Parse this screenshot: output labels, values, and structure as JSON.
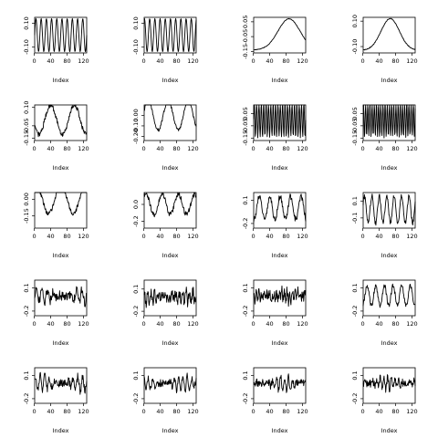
{
  "chart_data": [
    {
      "type": "line",
      "xlabel": "Index",
      "x_ticks": [
        0,
        40,
        80,
        120
      ],
      "xlim": [
        1,
        128
      ],
      "ylim": [
        -0.15,
        0.15
      ],
      "y_ticks": [
        -0.1,
        0.1
      ],
      "y_tick_labels": [
        "-0.10",
        "0.10"
      ],
      "shape": {
        "kind": "sine",
        "cycles": 10,
        "amp": 0.14,
        "noise": 0,
        "phase": 0
      }
    },
    {
      "type": "line",
      "xlabel": "Index",
      "x_ticks": [
        0,
        40,
        80,
        120
      ],
      "xlim": [
        1,
        128
      ],
      "ylim": [
        -0.15,
        0.15
      ],
      "y_ticks": [
        -0.1,
        0.1
      ],
      "y_tick_labels": [
        "-0.10",
        "0.10"
      ],
      "shape": {
        "kind": "sine",
        "cycles": 10,
        "amp": 0.14,
        "noise": 0,
        "phase": 1.2
      }
    },
    {
      "type": "line",
      "xlabel": "Index",
      "x_ticks": [
        0,
        40,
        80,
        120
      ],
      "xlim": [
        1,
        128
      ],
      "ylim": [
        -0.16,
        0.08
      ],
      "y_ticks": [
        -0.15,
        -0.05,
        0.05
      ],
      "y_tick_labels": [
        "-0.15",
        "-0.05",
        "0.05"
      ],
      "shape": {
        "kind": "hump",
        "center": 0.68,
        "width": 0.3,
        "low": -0.14,
        "high": 0.07,
        "noise": 0.002
      }
    },
    {
      "type": "line",
      "xlabel": "Index",
      "x_ticks": [
        0,
        40,
        80,
        120
      ],
      "xlim": [
        1,
        128
      ],
      "ylim": [
        -0.15,
        0.13
      ],
      "y_ticks": [
        -0.1,
        0.1
      ],
      "y_tick_labels": [
        "-0.10",
        "0.10"
      ],
      "shape": {
        "kind": "hump",
        "center": 0.52,
        "width": 0.25,
        "low": -0.13,
        "high": 0.12,
        "noise": 0.003
      }
    },
    {
      "type": "line",
      "xlabel": "Index",
      "x_ticks": [
        0,
        40,
        80,
        120
      ],
      "xlim": [
        1,
        128
      ],
      "ylim": [
        -0.17,
        0.12
      ],
      "y_ticks": [
        -0.15,
        -0.05,
        0.1
      ],
      "y_tick_labels": [
        "-0.15",
        "-0.05",
        "0.10"
      ],
      "shape": {
        "kind": "sine",
        "cycles": 2.2,
        "amp": 0.12,
        "noise": 0.02,
        "phase": 3.6
      }
    },
    {
      "type": "line",
      "xlabel": "Index",
      "x_ticks": [
        0,
        40,
        80,
        120
      ],
      "xlim": [
        1,
        128
      ],
      "ylim": [
        -0.24,
        0.1
      ],
      "y_ticks": [
        -0.2,
        -0.1,
        0.0
      ],
      "y_tick_labels": [
        "-0.20",
        "-0.10",
        "0.00"
      ],
      "shape": {
        "kind": "sine",
        "cycles": 2.6,
        "amp": 0.14,
        "noise": 0.015,
        "phase": 0.3
      }
    },
    {
      "type": "line",
      "xlabel": "Index",
      "x_ticks": [
        0,
        40,
        80,
        120
      ],
      "xlim": [
        1,
        128
      ],
      "ylim": [
        -0.17,
        0.12
      ],
      "y_ticks": [
        -0.15,
        -0.05,
        0.05
      ],
      "y_tick_labels": [
        "-0.15",
        "-0.05",
        "0.05"
      ],
      "shape": {
        "kind": "sine",
        "cycles": 22,
        "amp": 0.14,
        "noise": 0.01,
        "phase": 0
      }
    },
    {
      "type": "line",
      "xlabel": "Index",
      "x_ticks": [
        0,
        40,
        80,
        120
      ],
      "xlim": [
        1,
        128
      ],
      "ylim": [
        -0.17,
        0.12
      ],
      "y_ticks": [
        -0.15,
        -0.05,
        0.05
      ],
      "y_tick_labels": [
        "-0.15",
        "-0.05",
        "0.05"
      ],
      "shape": {
        "kind": "sine",
        "cycles": 24,
        "amp": 0.14,
        "noise": 0.01,
        "phase": 0.8
      }
    },
    {
      "type": "line",
      "xlabel": "Index",
      "x_ticks": [
        0,
        40,
        80,
        120
      ],
      "xlim": [
        1,
        128
      ],
      "ylim": [
        -0.26,
        0.06
      ],
      "y_ticks": [
        -0.15,
        0.0
      ],
      "y_tick_labels": [
        "-0.15",
        "0.00"
      ],
      "shape": {
        "kind": "sine",
        "cycles": 2.1,
        "amp": 0.13,
        "noise": 0.02,
        "phase": 1.2
      }
    },
    {
      "type": "line",
      "xlabel": "Index",
      "x_ticks": [
        0,
        40,
        80,
        120
      ],
      "xlim": [
        1,
        128
      ],
      "ylim": [
        -0.28,
        0.14
      ],
      "y_ticks": [
        -0.2,
        0.0
      ],
      "y_tick_labels": [
        "-0.2",
        "0.0"
      ],
      "shape": {
        "kind": "sine",
        "cycles": 3.2,
        "amp": 0.12,
        "noise": 0.03,
        "phase": 0.9
      }
    },
    {
      "type": "line",
      "xlabel": "Index",
      "x_ticks": [
        0,
        40,
        80,
        120
      ],
      "xlim": [
        1,
        128
      ],
      "ylim": [
        -0.26,
        0.2
      ],
      "y_ticks": [
        -0.2,
        0.1
      ],
      "y_tick_labels": [
        "-0.2",
        "0.1"
      ],
      "shape": {
        "kind": "sine",
        "cycles": 5,
        "amp": 0.15,
        "noise": 0.04,
        "phase": 4.4
      }
    },
    {
      "type": "line",
      "xlabel": "Index",
      "x_ticks": [
        0,
        40,
        80,
        120
      ],
      "xlim": [
        1,
        128
      ],
      "ylim": [
        -0.22,
        0.2
      ],
      "y_ticks": [
        -0.1,
        0.1
      ],
      "y_tick_labels": [
        "-0.1",
        "0.1"
      ],
      "shape": {
        "kind": "sine",
        "cycles": 7,
        "amp": 0.16,
        "noise": 0.03,
        "phase": 0.5
      }
    },
    {
      "type": "line",
      "xlabel": "Index",
      "x_ticks": [
        0,
        40,
        80,
        120
      ],
      "xlim": [
        1,
        128
      ],
      "ylim": [
        -0.26,
        0.2
      ],
      "y_ticks": [
        -0.2,
        0.1
      ],
      "y_tick_labels": [
        "-0.2",
        "0.1"
      ],
      "shape": {
        "kind": "noise",
        "amp": 0.09,
        "noise": 0.06,
        "cycles": 9,
        "phase": 0.2
      }
    },
    {
      "type": "line",
      "xlabel": "Index",
      "x_ticks": [
        0,
        40,
        80,
        120
      ],
      "xlim": [
        1,
        128
      ],
      "ylim": [
        -0.26,
        0.22
      ],
      "y_ticks": [
        -0.2,
        0.1
      ],
      "y_tick_labels": [
        "-0.2",
        "0.1"
      ],
      "shape": {
        "kind": "noise",
        "amp": 0.08,
        "noise": 0.08,
        "cycles": 15,
        "phase": 1.1
      }
    },
    {
      "type": "line",
      "xlabel": "Index",
      "x_ticks": [
        0,
        40,
        80,
        120
      ],
      "xlim": [
        1,
        128
      ],
      "ylim": [
        -0.26,
        0.2
      ],
      "y_ticks": [
        -0.2,
        0.1
      ],
      "y_tick_labels": [
        "-0.2",
        "0.1"
      ],
      "shape": {
        "kind": "noise",
        "amp": 0.07,
        "noise": 0.08,
        "cycles": 20,
        "phase": 2.2
      }
    },
    {
      "type": "line",
      "xlabel": "Index",
      "x_ticks": [
        0,
        40,
        80,
        120
      ],
      "xlim": [
        1,
        128
      ],
      "ylim": [
        -0.26,
        0.2
      ],
      "y_ticks": [
        -0.2,
        0.1
      ],
      "y_tick_labels": [
        "-0.2",
        "0.1"
      ],
      "shape": {
        "kind": "sine",
        "cycles": 6,
        "amp": 0.13,
        "noise": 0.03,
        "phase": 5.0
      }
    },
    {
      "type": "line",
      "xlabel": "Index",
      "x_ticks": [
        0,
        40,
        80,
        120
      ],
      "xlim": [
        1,
        128
      ],
      "ylim": [
        -0.26,
        0.2
      ],
      "y_ticks": [
        -0.2,
        0.1
      ],
      "y_tick_labels": [
        "-0.2",
        "0.1"
      ],
      "shape": {
        "kind": "noise",
        "amp": 0.1,
        "noise": 0.05,
        "cycles": 11,
        "phase": 0.7
      }
    },
    {
      "type": "line",
      "xlabel": "Index",
      "x_ticks": [
        0,
        40,
        80,
        120
      ],
      "xlim": [
        1,
        128
      ],
      "ylim": [
        -0.26,
        0.2
      ],
      "y_ticks": [
        -0.2,
        0.1
      ],
      "y_tick_labels": [
        "-0.2",
        "0.1"
      ],
      "shape": {
        "kind": "noise",
        "amp": 0.1,
        "noise": 0.05,
        "cycles": 12,
        "phase": 1.9
      }
    },
    {
      "type": "line",
      "xlabel": "Index",
      "x_ticks": [
        0,
        40,
        80,
        120
      ],
      "xlim": [
        1,
        128
      ],
      "ylim": [
        -0.26,
        0.2
      ],
      "y_ticks": [
        -0.2,
        0.1
      ],
      "y_tick_labels": [
        "-0.2",
        "0.1"
      ],
      "shape": {
        "kind": "noise",
        "amp": 0.09,
        "noise": 0.05,
        "cycles": 13,
        "phase": 3.3
      }
    },
    {
      "type": "line",
      "xlabel": "Index",
      "x_ticks": [
        0,
        40,
        80,
        120
      ],
      "xlim": [
        1,
        128
      ],
      "ylim": [
        -0.26,
        0.2
      ],
      "y_ticks": [
        -0.2,
        0.1
      ],
      "y_tick_labels": [
        "-0.2",
        "0.1"
      ],
      "shape": {
        "kind": "noise",
        "amp": 0.09,
        "noise": 0.05,
        "cycles": 14,
        "phase": 4.1
      }
    }
  ]
}
